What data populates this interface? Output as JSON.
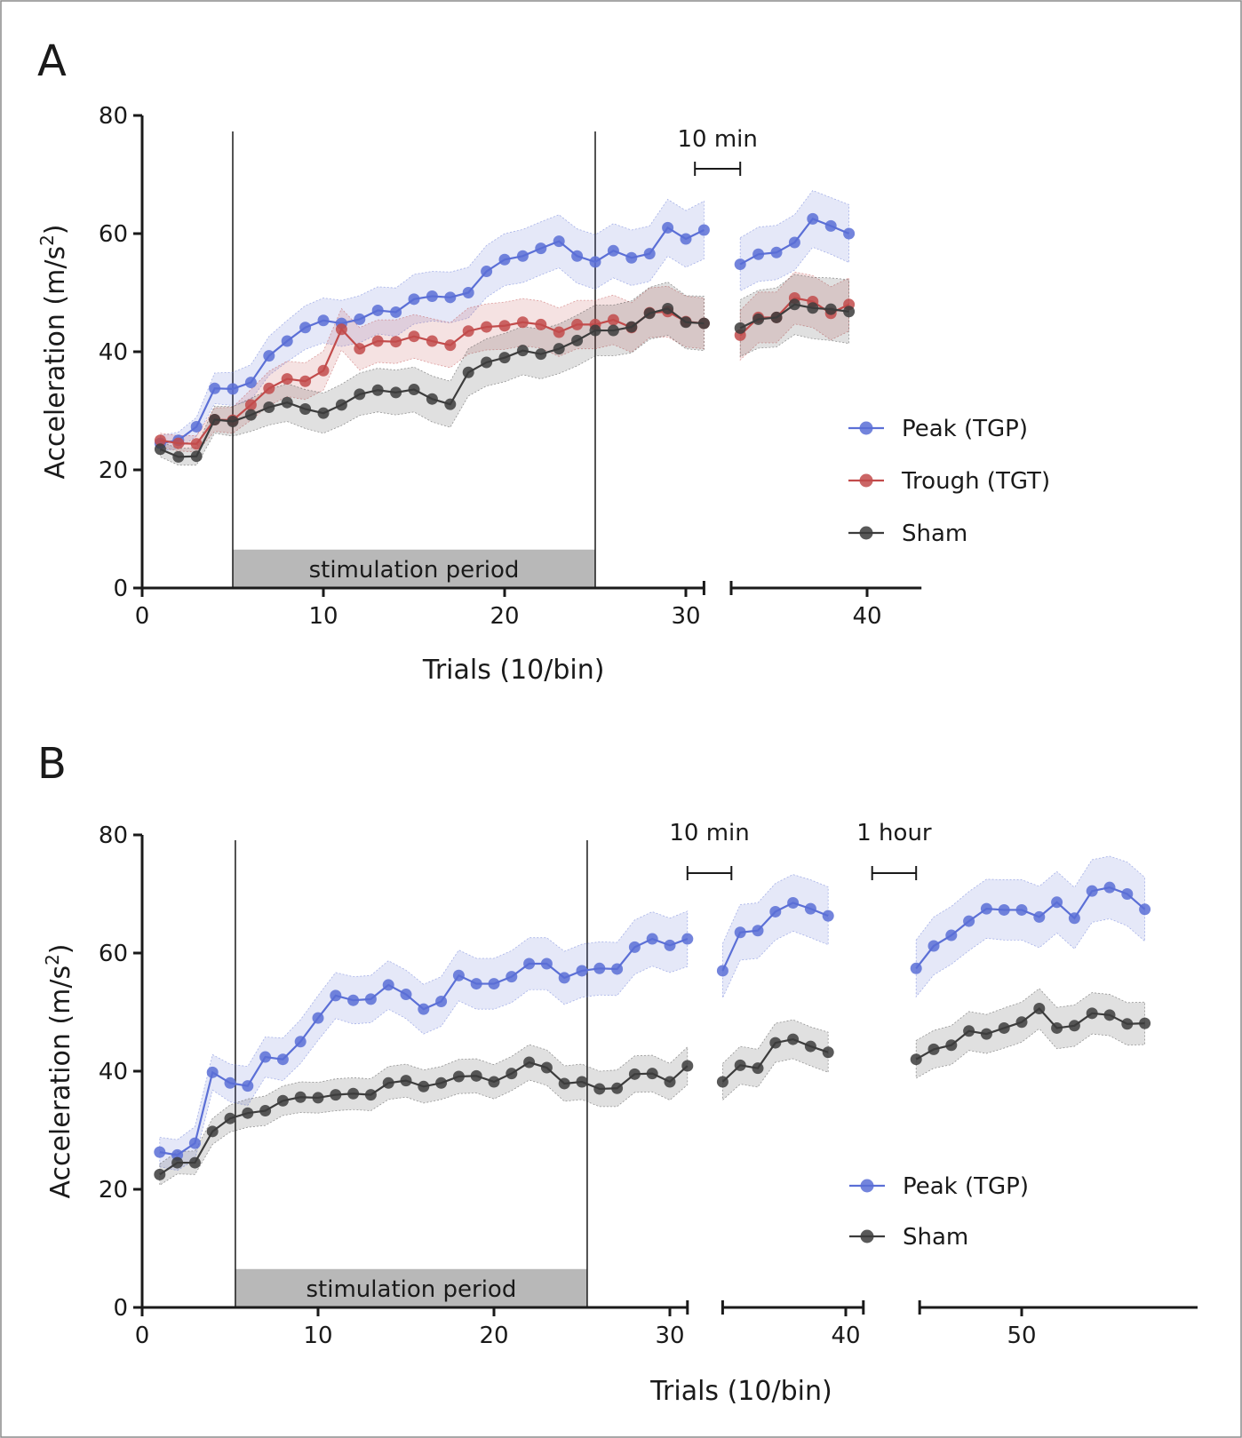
{
  "colors": {
    "peak": "#5b6fd6",
    "trough": "#c24b4b",
    "sham": "#3c3c3c",
    "stim_box": "#b8b8b8"
  },
  "chart_data": [
    {
      "panel": "A",
      "type": "line",
      "xlabel": "Trials (10/bin)",
      "ylabel": "Acceleration (m/s",
      "ylabel_sup": "2",
      "ylabel_end": ")",
      "xlim": [
        0,
        40
      ],
      "ylim": [
        0,
        80
      ],
      "xticks": [
        0,
        10,
        20,
        30,
        40
      ],
      "yticks": [
        0,
        20,
        40,
        60,
        80
      ],
      "axis_segments": [
        [
          0,
          31
        ],
        [
          32.5,
          43
        ]
      ],
      "stimulation": {
        "label": "stimulation period",
        "start": 5,
        "end": 25,
        "height": 6.5
      },
      "annotations": [
        {
          "text": "10 min",
          "from": 30.5,
          "to": 33
        }
      ],
      "legend_position": "right",
      "series": [
        {
          "name": "Peak (TGP)",
          "color_key": "peak",
          "segments": [
            {
              "x": [
                1,
                2,
                3,
                4,
                5,
                6,
                7,
                8,
                9,
                10,
                11,
                12,
                13,
                14,
                15,
                16,
                17,
                18,
                19,
                20,
                21,
                22,
                23,
                24,
                25,
                26,
                27,
                28,
                29,
                30,
                31
              ],
              "y": [
                24.5,
                25,
                27.3,
                33.8,
                33.7,
                34.8,
                39.3,
                41.8,
                44.1,
                45.3,
                44.8,
                45.5,
                47,
                46.7,
                48.9,
                49.4,
                49.2,
                50,
                53.6,
                55.6,
                56.2,
                57.5,
                58.7,
                56.2,
                55.2,
                57.1,
                55.9,
                56.6,
                61,
                59.1,
                60.6
              ],
              "err": [
                1.3,
                1.4,
                1.6,
                2.6,
                2.8,
                3,
                3.3,
                3.5,
                3.7,
                3.8,
                3.9,
                4,
                4,
                4.1,
                4.2,
                4.2,
                4.3,
                4.3,
                4.4,
                4.4,
                4.5,
                4.5,
                4.5,
                4.6,
                4.6,
                4.6,
                4.7,
                4.7,
                4.8,
                4.8,
                4.9
              ]
            },
            {
              "x": [
                33,
                34,
                35,
                36,
                37,
                38,
                39
              ],
              "y": [
                54.8,
                56.5,
                56.8,
                58.5,
                62.5,
                61.3,
                60
              ],
              "err": [
                4.5,
                4.6,
                4.6,
                4.7,
                4.8,
                4.8,
                4.9
              ]
            }
          ]
        },
        {
          "name": "Trough (TGT)",
          "color_key": "trough",
          "segments": [
            {
              "x": [
                1,
                2,
                3,
                4,
                5,
                6,
                7,
                8,
                9,
                10,
                11,
                12,
                13,
                14,
                15,
                16,
                17,
                18,
                19,
                20,
                21,
                22,
                23,
                24,
                25,
                26,
                27,
                28,
                29,
                30,
                31
              ],
              "y": [
                25,
                24.5,
                24.4,
                28.5,
                28.4,
                31,
                33.8,
                35.4,
                35,
                36.8,
                43.8,
                40.5,
                41.8,
                41.7,
                42.6,
                41.8,
                41.1,
                43.5,
                44.2,
                44.4,
                45,
                44.6,
                43.3,
                44.6,
                44.6,
                45.4,
                44.1,
                46.6,
                46.8,
                45.1,
                44.8
              ],
              "err": [
                1.2,
                1.3,
                1.4,
                2,
                2.2,
                2.6,
                2.9,
                3,
                3.1,
                3.3,
                3.5,
                3.6,
                3.6,
                3.7,
                3.7,
                3.8,
                3.8,
                3.9,
                3.9,
                4,
                4,
                4,
                4.1,
                4.1,
                4.1,
                4.2,
                4.2,
                4.2,
                4.3,
                4.3,
                4.3
              ]
            },
            {
              "x": [
                33,
                34,
                35,
                36,
                37,
                38,
                39
              ],
              "y": [
                42.8,
                45.8,
                45.8,
                49.1,
                48.5,
                46.5,
                48
              ],
              "err": [
                4.2,
                4.3,
                4.3,
                4.4,
                4.4,
                4.5,
                4.5
              ]
            }
          ]
        },
        {
          "name": "Sham",
          "color_key": "sham",
          "segments": [
            {
              "x": [
                1,
                2,
                3,
                4,
                5,
                6,
                7,
                8,
                9,
                10,
                11,
                12,
                13,
                14,
                15,
                16,
                17,
                18,
                19,
                20,
                21,
                22,
                23,
                24,
                25,
                26,
                27,
                28,
                29,
                30,
                31
              ],
              "y": [
                23.5,
                22.2,
                22.3,
                28.5,
                28.2,
                29.3,
                30.6,
                31.4,
                30.3,
                29.6,
                31,
                32.8,
                33.5,
                33.1,
                33.6,
                32,
                31.1,
                36.5,
                38.2,
                39,
                40.2,
                39.6,
                40.5,
                41.9,
                43.6,
                43.6,
                44.2,
                46.5,
                47.3,
                45,
                44.8
              ],
              "err": [
                1.3,
                1.4,
                1.5,
                2.3,
                2.5,
                2.8,
                3,
                3.2,
                3.3,
                3.4,
                3.5,
                3.6,
                3.7,
                3.8,
                3.8,
                3.9,
                3.9,
                4,
                4,
                4.1,
                4.1,
                4.2,
                4.2,
                4.3,
                4.3,
                4.3,
                4.4,
                4.4,
                4.5,
                4.5,
                4.6
              ]
            },
            {
              "x": [
                33,
                34,
                35,
                36,
                37,
                38,
                39
              ],
              "y": [
                44,
                45.5,
                45.8,
                48,
                47.4,
                47.2,
                46.8
              ],
              "err": [
                4.8,
                4.9,
                5,
                5.1,
                5.2,
                5.3,
                5.4
              ]
            }
          ]
        }
      ]
    },
    {
      "panel": "B",
      "type": "line",
      "xlabel": "Trials (10/bin)",
      "ylabel": "Acceleration (m/s",
      "ylabel_sup": "2",
      "ylabel_end": ")",
      "xlim": [
        0,
        55
      ],
      "ylim": [
        0,
        80
      ],
      "xticks": [
        0,
        10,
        20,
        30,
        40,
        50
      ],
      "yticks": [
        0,
        20,
        40,
        60,
        80
      ],
      "axis_segments": [
        [
          0,
          31
        ],
        [
          33,
          41
        ],
        [
          44.2,
          60
        ]
      ],
      "stimulation": {
        "label": "stimulation period",
        "start": 5.3,
        "end": 25.3,
        "height": 6.5
      },
      "annotations": [
        {
          "text": "10 min",
          "from": 31,
          "to": 33.5
        },
        {
          "text": "1 hour",
          "from": 41.5,
          "to": 44
        }
      ],
      "legend_position": "right",
      "series": [
        {
          "name": "Peak (TGP)",
          "color_key": "peak",
          "segments": [
            {
              "x": [
                1,
                2,
                3,
                4,
                5,
                6,
                7,
                8,
                9,
                10,
                11,
                12,
                13,
                14,
                15,
                16,
                17,
                18,
                19,
                20,
                21,
                22,
                23,
                24,
                25,
                26,
                27,
                28,
                29,
                30,
                31
              ],
              "y": [
                26.3,
                25.8,
                27.8,
                39.8,
                38,
                37.5,
                42.4,
                42,
                45,
                49,
                52.8,
                52,
                52.2,
                54.6,
                53,
                50.5,
                51.8,
                56.2,
                54.8,
                54.8,
                56,
                58.2,
                58.2,
                55.8,
                57,
                57.4,
                57.3,
                61,
                62.4,
                61.3,
                62.4
              ],
              "err": [
                2.5,
                2.6,
                2.8,
                3,
                3.2,
                3.3,
                3.4,
                3.6,
                3.7,
                3.8,
                3.9,
                4,
                4,
                4.1,
                4.1,
                4.2,
                4.2,
                4.3,
                4.3,
                4.3,
                4.4,
                4.4,
                4.4,
                4.5,
                4.5,
                4.5,
                4.5,
                4.6,
                4.6,
                4.6,
                4.7
              ]
            },
            {
              "x": [
                33,
                34,
                35,
                36,
                37,
                38,
                39
              ],
              "y": [
                57,
                63.5,
                63.8,
                67,
                68.5,
                67.5,
                66.3
              ],
              "err": [
                4.6,
                4.7,
                4.7,
                4.8,
                4.8,
                4.9,
                4.9
              ]
            },
            {
              "x": [
                44,
                45,
                46,
                47,
                48,
                49,
                50,
                51,
                52,
                53,
                54,
                55,
                56,
                57
              ],
              "y": [
                57.4,
                61.2,
                63,
                65.4,
                67.5,
                67.3,
                67.3,
                66.1,
                68.6,
                65.9,
                70.5,
                71.1,
                70,
                67.4
              ],
              "err": [
                4.8,
                4.9,
                4.9,
                5,
                5,
                5.1,
                5.1,
                5.2,
                5.2,
                5.2,
                5.3,
                5.3,
                5.4,
                5.4
              ]
            }
          ]
        },
        {
          "name": "Sham",
          "color_key": "sham",
          "segments": [
            {
              "x": [
                1,
                2,
                3,
                4,
                5,
                6,
                7,
                8,
                9,
                10,
                11,
                12,
                13,
                14,
                15,
                16,
                17,
                18,
                19,
                20,
                21,
                22,
                23,
                24,
                25,
                26,
                27,
                28,
                29,
                30,
                31
              ],
              "y": [
                22.5,
                24.5,
                24.5,
                29.8,
                32,
                32.9,
                33.3,
                35,
                35.6,
                35.5,
                36,
                36.2,
                36,
                38,
                38.4,
                37.4,
                38,
                39.1,
                39.2,
                38.2,
                39.6,
                41.5,
                40.6,
                37.9,
                38.2,
                37,
                37.1,
                39.5,
                39.6,
                38.2,
                40.9
              ],
              "err": [
                1.8,
                1.9,
                2,
                2.2,
                2.3,
                2.4,
                2.5,
                2.5,
                2.6,
                2.6,
                2.7,
                2.7,
                2.7,
                2.8,
                2.8,
                2.8,
                2.8,
                2.9,
                2.9,
                2.9,
                2.9,
                3,
                3,
                3,
                3,
                3,
                3.1,
                3.1,
                3.1,
                3.1,
                3.2
              ]
            },
            {
              "x": [
                33,
                34,
                35,
                36,
                37,
                38,
                39
              ],
              "y": [
                38.2,
                41,
                40.5,
                44.8,
                45.4,
                44.2,
                43.2
              ],
              "err": [
                3.1,
                3.2,
                3.2,
                3.3,
                3.3,
                3.3,
                3.4
              ]
            },
            {
              "x": [
                44,
                45,
                46,
                47,
                48,
                49,
                50,
                51,
                52,
                53,
                54,
                55,
                56,
                57
              ],
              "y": [
                42,
                43.7,
                44.4,
                46.8,
                46.3,
                47.3,
                48.3,
                50.6,
                47.3,
                47.7,
                49.8,
                49.5,
                48,
                48.1
              ],
              "err": [
                3.2,
                3.2,
                3.3,
                3.3,
                3.3,
                3.4,
                3.4,
                3.4,
                3.5,
                3.5,
                3.5,
                3.5,
                3.6,
                3.6
              ]
            }
          ]
        }
      ]
    }
  ]
}
